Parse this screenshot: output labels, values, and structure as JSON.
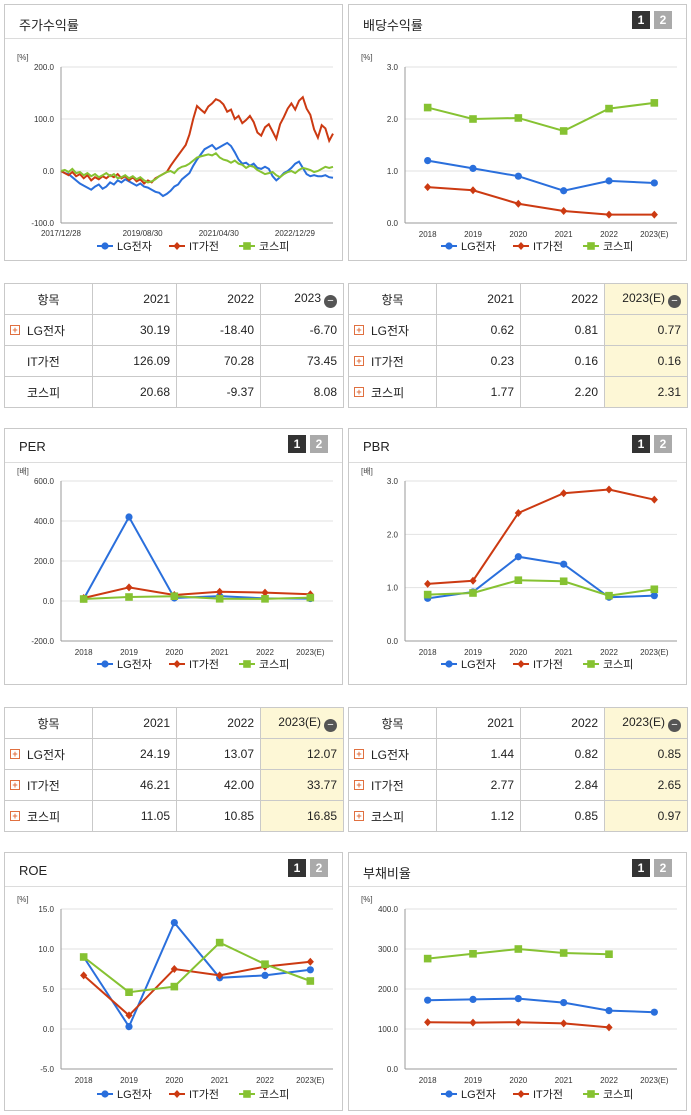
{
  "panels": [
    {
      "title": "주가수익률",
      "buttons": false
    },
    {
      "title": "배당수익률",
      "buttons": true
    },
    {
      "title": "PER",
      "buttons": true
    },
    {
      "title": "PBR",
      "buttons": true
    },
    {
      "title": "ROE",
      "buttons": true
    },
    {
      "title": "부채비율",
      "buttons": true
    }
  ],
  "buttons": {
    "b1": "1",
    "b2": "2"
  },
  "colors": {
    "lg": "#2a6fdc",
    "it": "#cc3a12",
    "kospi": "#86c232"
  },
  "legend": [
    "LG전자",
    "IT가전",
    "코스피"
  ],
  "chart_data": [
    {
      "id": "stock",
      "type": "line",
      "unit": "[%]",
      "ylim": [
        -100,
        200
      ],
      "yticks": [
        "200.0",
        "100.0",
        "0.0",
        "-100.0"
      ],
      "xticks": [
        "2017/12/28",
        "2019/08/30",
        "2021/04/30",
        "2022/12/29"
      ],
      "series": [
        {
          "name": "LG전자",
          "values": [
            0,
            -4,
            -6,
            -12,
            -18,
            -24,
            -28,
            -32,
            -36,
            -30,
            -26,
            -34,
            -30,
            -22,
            -26,
            -18,
            -22,
            -16,
            -20,
            -24,
            -28,
            -24,
            -30,
            -32,
            -36,
            -40,
            -42,
            -48,
            -44,
            -38,
            -30,
            -26,
            -16,
            -10,
            -4,
            10,
            22,
            32,
            42,
            46,
            50,
            42,
            46,
            50,
            54,
            48,
            36,
            22,
            14,
            16,
            10,
            14,
            6,
            4,
            8,
            4,
            -10,
            -18,
            -12,
            -4,
            0,
            6,
            14,
            18,
            6,
            -6,
            -10,
            -8,
            -10,
            -10,
            -8,
            -12,
            -13
          ]
        },
        {
          "name": "IT가전",
          "values": [
            0,
            -4,
            -8,
            -2,
            -10,
            -6,
            -14,
            -8,
            -18,
            -12,
            -16,
            -10,
            -14,
            -8,
            -12,
            -6,
            -14,
            -10,
            -18,
            -12,
            -20,
            -16,
            -24,
            -18,
            -22,
            -14,
            -10,
            -6,
            -2,
            10,
            20,
            30,
            40,
            50,
            70,
            100,
            125,
            118,
            112,
            124,
            130,
            138,
            135,
            128,
            114,
            118,
            100,
            106,
            92,
            98,
            106,
            94,
            74,
            68,
            84,
            90,
            76,
            62,
            90,
            104,
            120,
            130,
            118,
            135,
            142,
            120,
            108,
            80,
            64,
            88,
            82,
            58,
            72
          ]
        },
        {
          "name": "코스피",
          "values": [
            0,
            2,
            -2,
            4,
            -4,
            -2,
            -8,
            -4,
            -10,
            -6,
            -12,
            -8,
            -4,
            -10,
            -6,
            -14,
            -12,
            -8,
            -14,
            -10,
            -16,
            -12,
            -18,
            -22,
            -20,
            -16,
            -10,
            -6,
            -2,
            0,
            -4,
            4,
            8,
            10,
            14,
            20,
            26,
            28,
            30,
            32,
            30,
            34,
            26,
            22,
            20,
            16,
            20,
            14,
            12,
            6,
            10,
            8,
            2,
            -2,
            -6,
            -4,
            -2,
            -8,
            -12,
            -6,
            -2,
            0,
            -4,
            2,
            6,
            4,
            2,
            -2,
            0,
            4,
            8,
            6,
            8
          ]
        }
      ]
    },
    {
      "id": "dividend",
      "type": "line",
      "unit": "[%]",
      "ylim": [
        0,
        3
      ],
      "yticks": [
        "3.0",
        "2.0",
        "1.0",
        "0.0"
      ],
      "categories": [
        "2018",
        "2019",
        "2020",
        "2021",
        "2022",
        "2023(E)"
      ],
      "series": [
        {
          "name": "LG전자",
          "values": [
            1.2,
            1.05,
            0.9,
            0.62,
            0.81,
            0.77
          ]
        },
        {
          "name": "IT가전",
          "values": [
            0.69,
            0.63,
            0.37,
            0.23,
            0.16,
            0.16
          ]
        },
        {
          "name": "코스피",
          "values": [
            2.22,
            2.0,
            2.02,
            1.77,
            2.2,
            2.31
          ]
        }
      ]
    },
    {
      "id": "per",
      "type": "line",
      "unit": "[배]",
      "ylim": [
        -200,
        600
      ],
      "yticks": [
        "600.0",
        "400.0",
        "200.0",
        "0.0",
        "-200.0"
      ],
      "categories": [
        "2018",
        "2019",
        "2020",
        "2021",
        "2022",
        "2023(E)"
      ],
      "series": [
        {
          "name": "LG전자",
          "values": [
            10,
            420,
            15,
            24.19,
            13.07,
            12.07
          ]
        },
        {
          "name": "IT가전",
          "values": [
            15,
            68,
            30,
            46.21,
            42.0,
            33.77
          ]
        },
        {
          "name": "코스피",
          "values": [
            10,
            20,
            24,
            11.05,
            10.85,
            16.85
          ]
        }
      ]
    },
    {
      "id": "pbr",
      "type": "line",
      "unit": "[배]",
      "ylim": [
        0,
        3
      ],
      "yticks": [
        "3.0",
        "2.0",
        "1.0",
        "0.0"
      ],
      "categories": [
        "2018",
        "2019",
        "2020",
        "2021",
        "2022",
        "2023(E)"
      ],
      "series": [
        {
          "name": "LG전자",
          "values": [
            0.8,
            0.92,
            1.58,
            1.44,
            0.82,
            0.85
          ]
        },
        {
          "name": "IT가전",
          "values": [
            1.07,
            1.13,
            2.4,
            2.77,
            2.84,
            2.65
          ]
        },
        {
          "name": "코스피",
          "values": [
            0.87,
            0.9,
            1.14,
            1.12,
            0.85,
            0.97
          ]
        }
      ]
    },
    {
      "id": "roe",
      "type": "line",
      "unit": "[%]",
      "ylim": [
        -5,
        15
      ],
      "yticks": [
        "15.0",
        "10.0",
        "5.0",
        "0.0",
        "-5.0"
      ],
      "categories": [
        "2018",
        "2019",
        "2020",
        "2021",
        "2022",
        "2023(E)"
      ],
      "series": [
        {
          "name": "LG전자",
          "values": [
            9.0,
            0.3,
            13.3,
            6.4,
            6.7,
            7.4
          ]
        },
        {
          "name": "IT가전",
          "values": [
            6.7,
            1.7,
            7.5,
            6.7,
            7.8,
            8.4
          ]
        },
        {
          "name": "코스피",
          "values": [
            9.0,
            4.6,
            5.3,
            10.8,
            8.1,
            6.0
          ]
        }
      ]
    },
    {
      "id": "debt",
      "type": "line",
      "unit": "[%]",
      "ylim": [
        0,
        400
      ],
      "yticks": [
        "400.0",
        "300.0",
        "200.0",
        "100.0",
        "0.0"
      ],
      "categories": [
        "2018",
        "2019",
        "2020",
        "2021",
        "2022",
        "2023(E)"
      ],
      "series": [
        {
          "name": "LG전자",
          "values": [
            172,
            174,
            176,
            166,
            146,
            142
          ]
        },
        {
          "name": "IT가전",
          "values": [
            117,
            116,
            117,
            114,
            104,
            null
          ]
        },
        {
          "name": "코스피",
          "values": [
            276,
            288,
            300,
            290,
            287,
            null
          ]
        }
      ]
    }
  ],
  "tables": [
    {
      "id": "t_stock",
      "header": [
        "항목",
        "2021",
        "2022",
        "2023"
      ],
      "minus": true,
      "hlcol": false,
      "rows": [
        {
          "label": "LG전자",
          "plus": true,
          "v": [
            "30.19",
            "-18.40",
            "-6.70"
          ]
        },
        {
          "label": "IT가전",
          "plus": false,
          "v": [
            "126.09",
            "70.28",
            "73.45"
          ]
        },
        {
          "label": "코스피",
          "plus": false,
          "v": [
            "20.68",
            "-9.37",
            "8.08"
          ]
        }
      ]
    },
    {
      "id": "t_div",
      "header": [
        "항목",
        "2021",
        "2022",
        "2023(E)"
      ],
      "minus": true,
      "hlcol": true,
      "rows": [
        {
          "label": "LG전자",
          "plus": true,
          "v": [
            "0.62",
            "0.81",
            "0.77"
          ]
        },
        {
          "label": "IT가전",
          "plus": true,
          "v": [
            "0.23",
            "0.16",
            "0.16"
          ]
        },
        {
          "label": "코스피",
          "plus": true,
          "v": [
            "1.77",
            "2.20",
            "2.31"
          ]
        }
      ]
    },
    {
      "id": "t_per",
      "header": [
        "항목",
        "2021",
        "2022",
        "2023(E)"
      ],
      "minus": true,
      "hlcol": true,
      "rows": [
        {
          "label": "LG전자",
          "plus": true,
          "v": [
            "24.19",
            "13.07",
            "12.07"
          ]
        },
        {
          "label": "IT가전",
          "plus": true,
          "v": [
            "46.21",
            "42.00",
            "33.77"
          ]
        },
        {
          "label": "코스피",
          "plus": true,
          "v": [
            "11.05",
            "10.85",
            "16.85"
          ]
        }
      ]
    },
    {
      "id": "t_pbr",
      "header": [
        "항목",
        "2021",
        "2022",
        "2023(E)"
      ],
      "minus": true,
      "hlcol": true,
      "rows": [
        {
          "label": "LG전자",
          "plus": true,
          "v": [
            "1.44",
            "0.82",
            "0.85"
          ]
        },
        {
          "label": "IT가전",
          "plus": true,
          "v": [
            "2.77",
            "2.84",
            "2.65"
          ]
        },
        {
          "label": "코스피",
          "plus": true,
          "v": [
            "1.12",
            "0.85",
            "0.97"
          ]
        }
      ]
    }
  ]
}
